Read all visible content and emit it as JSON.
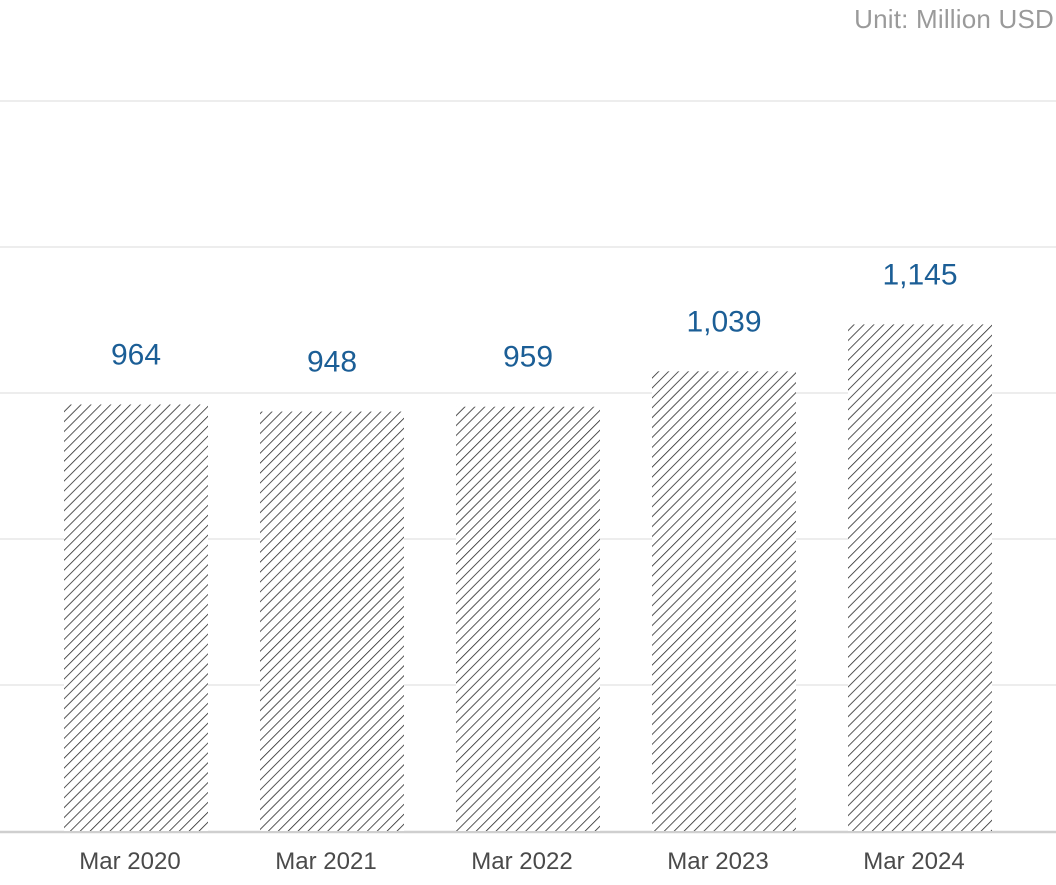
{
  "unit_label": "Unit: Million USD",
  "colors": {
    "value_label": "#1b5e96",
    "tick_label": "#4a4a4a",
    "unit_label": "#9a9a9a",
    "grid": "#e2e2e2",
    "axis": "#cfcfcf",
    "bar_hatch": "#2a2a2a",
    "bar_fill": "#ffffff"
  },
  "chart_data": {
    "type": "bar",
    "categories": [
      "Mar 2020",
      "Mar 2021",
      "Mar 2022",
      "Mar 2023",
      "Mar 2024"
    ],
    "values": [
      964,
      948,
      959,
      1039,
      1145
    ],
    "value_labels": [
      "964",
      "948",
      "959",
      "1,039",
      "1,145"
    ],
    "ylim": [
      0,
      1650
    ],
    "grid": true,
    "bar_pattern": "diagonal-hatch",
    "data_labels": true
  }
}
